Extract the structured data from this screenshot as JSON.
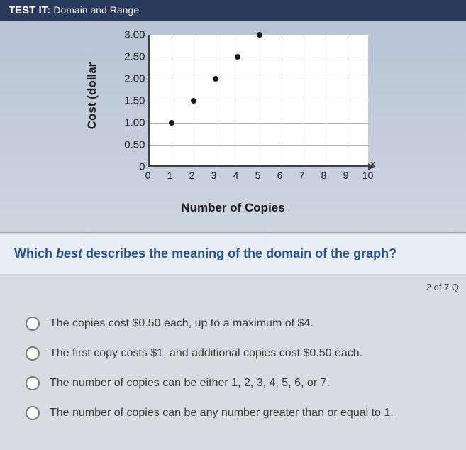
{
  "header": {
    "prefix": "TEST IT:",
    "title": "Domain and Range"
  },
  "chart": {
    "type": "scatter",
    "ylabel": "Cost (dollar",
    "xlabel": "Number of Copies",
    "x_axis_marker": "x",
    "background_color": "#ffffff",
    "grid_color": "#b0b0b0",
    "axis_color": "#404040",
    "point_color": "#1a1a1a",
    "xlim": [
      0,
      10
    ],
    "ylim": [
      0,
      3
    ],
    "xtick_step": 1,
    "ytick_step": 0.5,
    "xticks": [
      "0",
      "1",
      "2",
      "3",
      "4",
      "5",
      "6",
      "7",
      "8",
      "9",
      "10"
    ],
    "yticks": [
      "0",
      "0.50",
      "1.00",
      "1.50",
      "2.00",
      "2.50",
      "3.00"
    ],
    "points": [
      {
        "x": 1,
        "y": 1.0
      },
      {
        "x": 2,
        "y": 1.5
      },
      {
        "x": 3,
        "y": 2.0
      },
      {
        "x": 4,
        "y": 2.5
      },
      {
        "x": 5,
        "y": 3.0
      }
    ],
    "label_fontsize": 17,
    "tick_fontsize": 14,
    "point_radius": 4
  },
  "question": {
    "prefix": "Which ",
    "emph": "best",
    "suffix": " describes the meaning of the domain of the graph?"
  },
  "progress": "2 of 7 Q",
  "options": [
    {
      "text": "The copies cost $0.50 each, up to a maximum of $4."
    },
    {
      "text": "The first copy costs $1, and additional copies cost $0.50 each."
    },
    {
      "text": "The number of copies can be either 1, 2, 3, 4, 5, 6, or 7."
    },
    {
      "text": "The number of copies can be any number greater than or equal to 1."
    }
  ]
}
